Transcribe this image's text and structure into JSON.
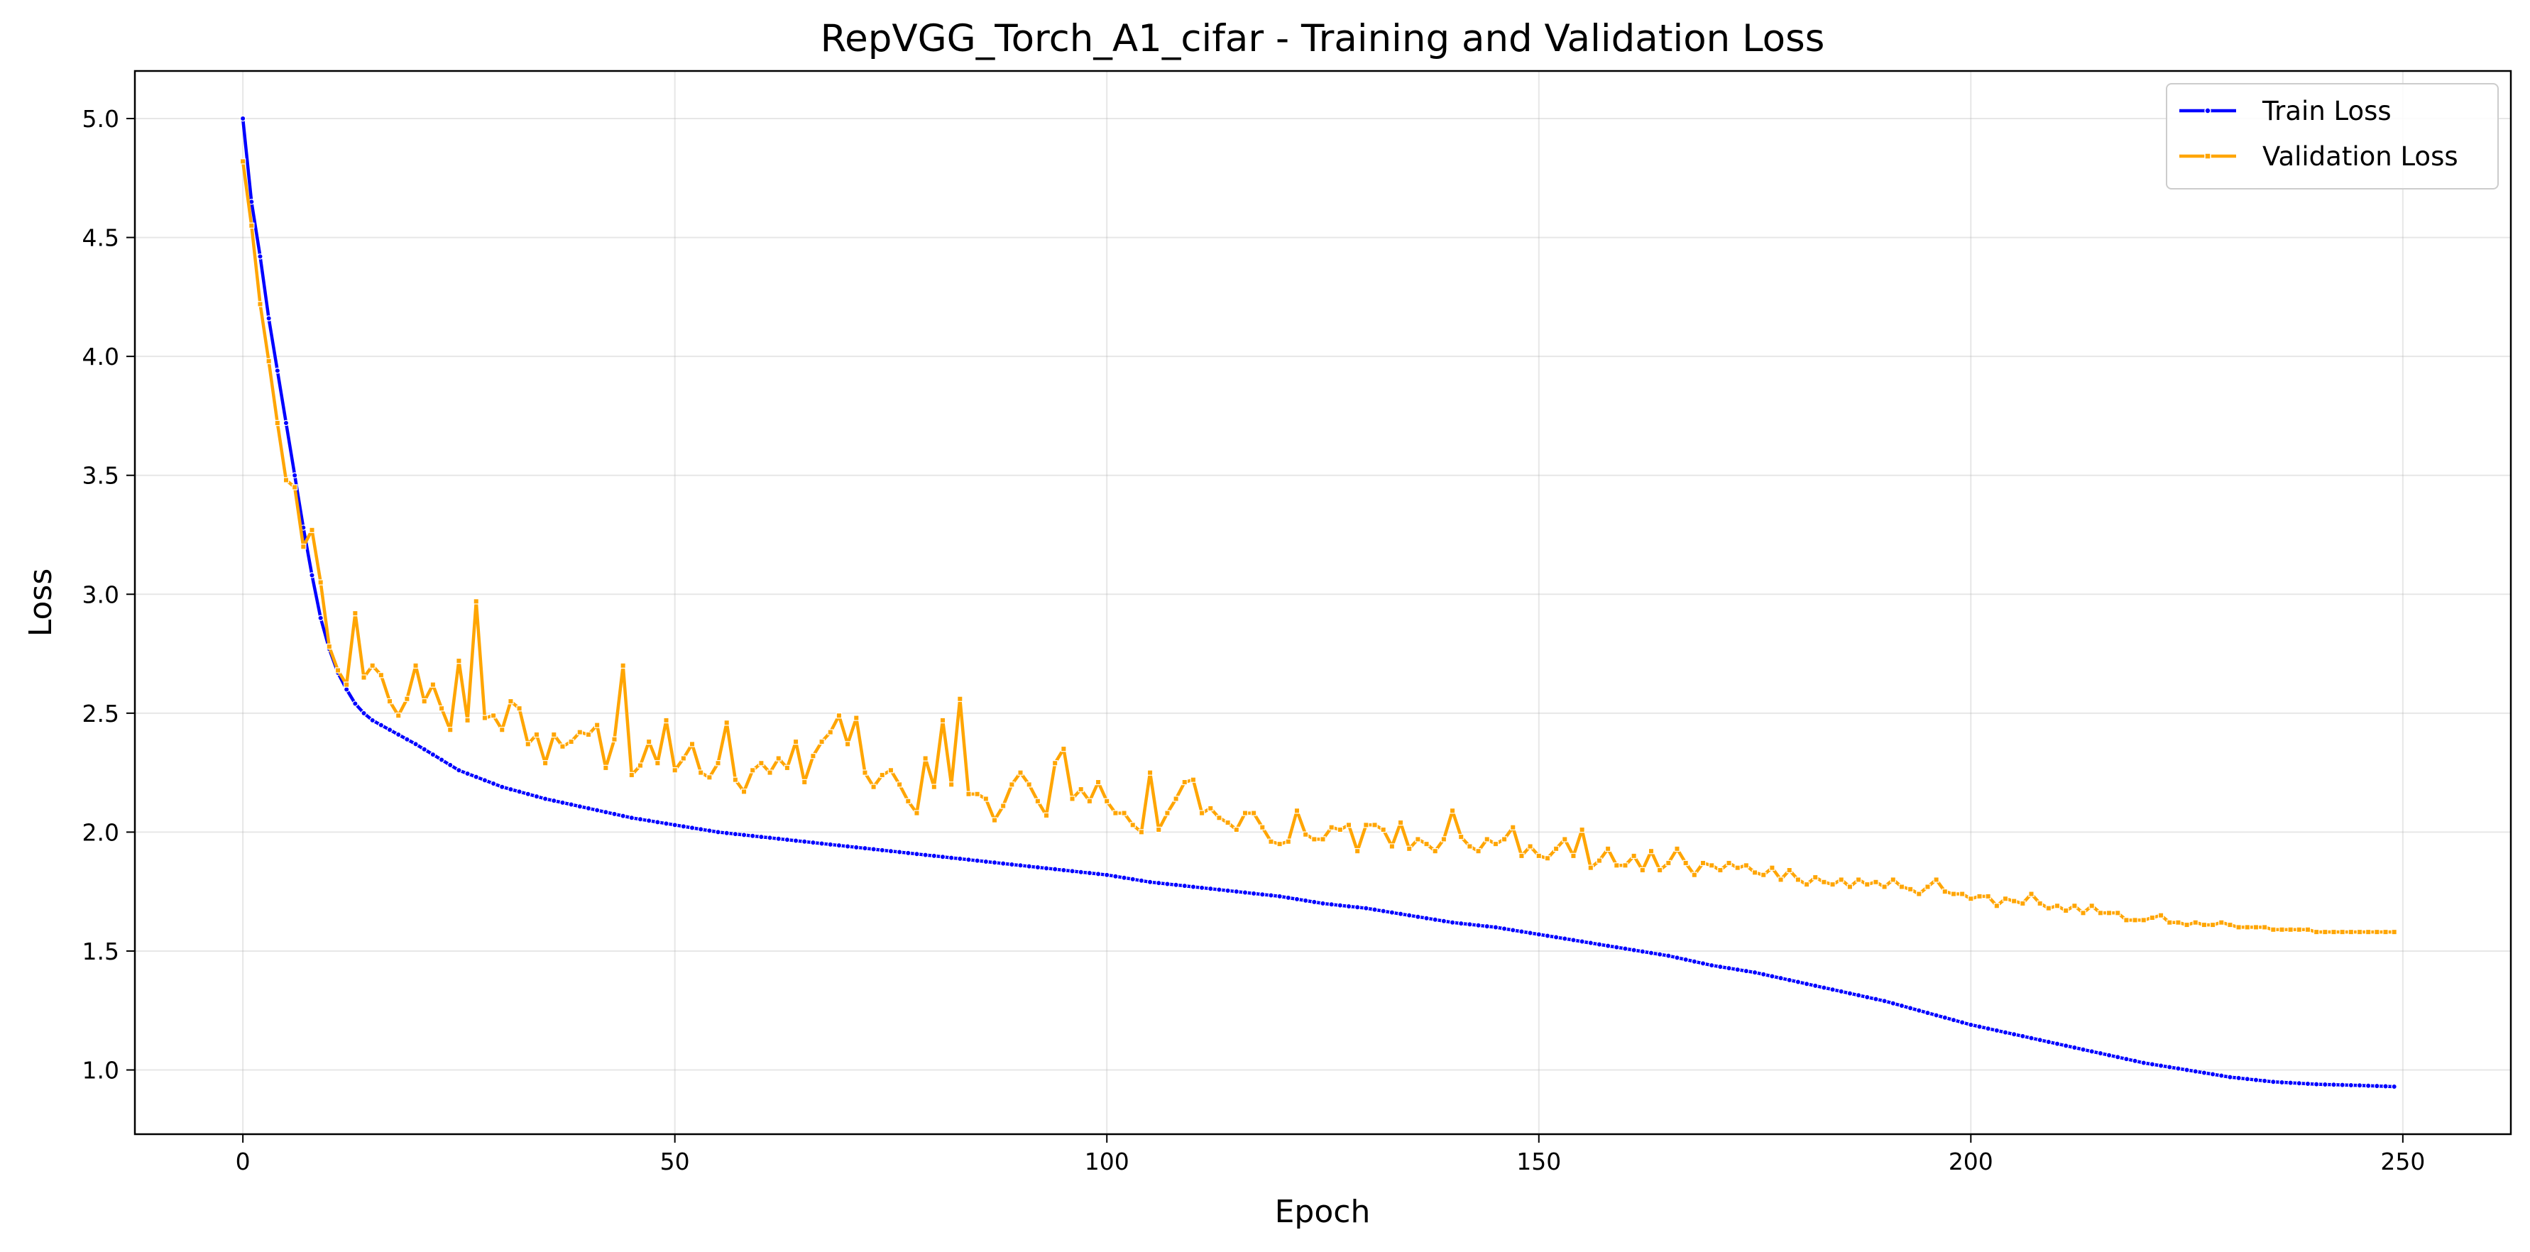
{
  "chart_data": {
    "type": "line",
    "title": "RepVGG_Torch_A1_cifar - Training and Validation Loss",
    "xlabel": "Epoch",
    "ylabel": "Loss",
    "xlim": [
      -12.5,
      262.5
    ],
    "ylim": [
      0.73,
      5.2
    ],
    "xticks": [
      0,
      50,
      100,
      150,
      200,
      250
    ],
    "yticks": [
      1.0,
      1.5,
      2.0,
      2.5,
      3.0,
      3.5,
      4.0,
      4.5,
      5.0
    ],
    "grid": true,
    "legend_position": "top-right",
    "series": [
      {
        "name": "Train Loss",
        "color": "#0000ff",
        "marker": "circle",
        "keypoints": [
          [
            0,
            5.0
          ],
          [
            1,
            4.65
          ],
          [
            2,
            4.42
          ],
          [
            3,
            4.16
          ],
          [
            4,
            3.94
          ],
          [
            5,
            3.72
          ],
          [
            6,
            3.5
          ],
          [
            7,
            3.28
          ],
          [
            8,
            3.08
          ],
          [
            9,
            2.9
          ],
          [
            10,
            2.77
          ],
          [
            11,
            2.67
          ],
          [
            12,
            2.6
          ],
          [
            13,
            2.54
          ],
          [
            14,
            2.5
          ],
          [
            15,
            2.47
          ],
          [
            20,
            2.37
          ],
          [
            25,
            2.26
          ],
          [
            30,
            2.19
          ],
          [
            35,
            2.14
          ],
          [
            40,
            2.1
          ],
          [
            45,
            2.06
          ],
          [
            50,
            2.03
          ],
          [
            55,
            2.0
          ],
          [
            60,
            1.98
          ],
          [
            65,
            1.96
          ],
          [
            70,
            1.94
          ],
          [
            75,
            1.92
          ],
          [
            80,
            1.9
          ],
          [
            85,
            1.88
          ],
          [
            90,
            1.86
          ],
          [
            95,
            1.84
          ],
          [
            100,
            1.82
          ],
          [
            105,
            1.79
          ],
          [
            110,
            1.77
          ],
          [
            115,
            1.75
          ],
          [
            120,
            1.73
          ],
          [
            125,
            1.7
          ],
          [
            130,
            1.68
          ],
          [
            135,
            1.65
          ],
          [
            140,
            1.62
          ],
          [
            145,
            1.6
          ],
          [
            150,
            1.57
          ],
          [
            155,
            1.54
          ],
          [
            160,
            1.51
          ],
          [
            165,
            1.48
          ],
          [
            170,
            1.44
          ],
          [
            175,
            1.41
          ],
          [
            180,
            1.37
          ],
          [
            185,
            1.33
          ],
          [
            190,
            1.29
          ],
          [
            195,
            1.24
          ],
          [
            200,
            1.19
          ],
          [
            205,
            1.15
          ],
          [
            210,
            1.11
          ],
          [
            215,
            1.07
          ],
          [
            220,
            1.03
          ],
          [
            225,
            1.0
          ],
          [
            230,
            0.97
          ],
          [
            235,
            0.95
          ],
          [
            240,
            0.94
          ],
          [
            245,
            0.935
          ],
          [
            249,
            0.93
          ]
        ]
      },
      {
        "name": "Validation Loss",
        "color": "#ffa500",
        "marker": "square",
        "keypoints": [
          [
            0,
            4.82
          ],
          [
            1,
            4.55
          ],
          [
            2,
            4.22
          ],
          [
            3,
            3.98
          ],
          [
            4,
            3.72
          ],
          [
            5,
            3.48
          ],
          [
            6,
            3.45
          ],
          [
            7,
            3.2
          ],
          [
            8,
            3.27
          ],
          [
            9,
            3.05
          ],
          [
            10,
            2.78
          ],
          [
            11,
            2.68
          ],
          [
            12,
            2.62
          ],
          [
            13,
            2.92
          ],
          [
            14,
            2.65
          ],
          [
            15,
            2.7
          ],
          [
            16,
            2.66
          ],
          [
            17,
            2.55
          ],
          [
            18,
            2.49
          ],
          [
            19,
            2.56
          ],
          [
            20,
            2.7
          ],
          [
            21,
            2.55
          ],
          [
            22,
            2.62
          ],
          [
            23,
            2.52
          ],
          [
            24,
            2.43
          ],
          [
            25,
            2.72
          ],
          [
            26,
            2.47
          ],
          [
            27,
            2.97
          ],
          [
            28,
            2.48
          ],
          [
            29,
            2.49
          ],
          [
            30,
            2.43
          ],
          [
            31,
            2.55
          ],
          [
            32,
            2.52
          ],
          [
            33,
            2.37
          ],
          [
            34,
            2.41
          ],
          [
            35,
            2.29
          ],
          [
            36,
            2.41
          ],
          [
            37,
            2.36
          ],
          [
            38,
            2.38
          ],
          [
            39,
            2.42
          ],
          [
            40,
            2.41
          ],
          [
            41,
            2.45
          ],
          [
            42,
            2.27
          ],
          [
            43,
            2.39
          ],
          [
            44,
            2.7
          ],
          [
            45,
            2.24
          ],
          [
            46,
            2.28
          ],
          [
            47,
            2.38
          ],
          [
            48,
            2.29
          ],
          [
            49,
            2.47
          ],
          [
            50,
            2.26
          ],
          [
            51,
            2.31
          ],
          [
            52,
            2.37
          ],
          [
            53,
            2.25
          ],
          [
            54,
            2.23
          ],
          [
            55,
            2.29
          ],
          [
            56,
            2.46
          ],
          [
            57,
            2.22
          ],
          [
            58,
            2.17
          ],
          [
            59,
            2.26
          ],
          [
            60,
            2.29
          ],
          [
            61,
            2.25
          ],
          [
            62,
            2.31
          ],
          [
            63,
            2.27
          ],
          [
            64,
            2.38
          ],
          [
            65,
            2.21
          ],
          [
            66,
            2.32
          ],
          [
            67,
            2.38
          ],
          [
            68,
            2.42
          ],
          [
            69,
            2.49
          ],
          [
            70,
            2.37
          ],
          [
            71,
            2.48
          ],
          [
            72,
            2.25
          ],
          [
            73,
            2.19
          ],
          [
            74,
            2.24
          ],
          [
            75,
            2.26
          ],
          [
            76,
            2.2
          ],
          [
            77,
            2.13
          ],
          [
            78,
            2.08
          ],
          [
            79,
            2.31
          ],
          [
            80,
            2.19
          ],
          [
            81,
            2.47
          ],
          [
            82,
            2.2
          ],
          [
            83,
            2.56
          ],
          [
            84,
            2.16
          ],
          [
            85,
            2.16
          ],
          [
            86,
            2.14
          ],
          [
            87,
            2.05
          ],
          [
            88,
            2.11
          ],
          [
            89,
            2.2
          ],
          [
            90,
            2.25
          ],
          [
            91,
            2.2
          ],
          [
            92,
            2.13
          ],
          [
            93,
            2.07
          ],
          [
            94,
            2.29
          ],
          [
            95,
            2.35
          ],
          [
            96,
            2.14
          ],
          [
            97,
            2.18
          ],
          [
            98,
            2.13
          ],
          [
            99,
            2.21
          ],
          [
            100,
            2.13
          ],
          [
            101,
            2.08
          ],
          [
            102,
            2.08
          ],
          [
            103,
            2.03
          ],
          [
            104,
            2.0
          ],
          [
            105,
            2.25
          ],
          [
            106,
            2.01
          ],
          [
            107,
            2.08
          ],
          [
            108,
            2.14
          ],
          [
            109,
            2.21
          ],
          [
            110,
            2.22
          ],
          [
            111,
            2.08
          ],
          [
            112,
            2.1
          ],
          [
            113,
            2.06
          ],
          [
            114,
            2.04
          ],
          [
            115,
            2.01
          ],
          [
            116,
            2.08
          ],
          [
            117,
            2.08
          ],
          [
            118,
            2.02
          ],
          [
            119,
            1.96
          ],
          [
            120,
            1.95
          ],
          [
            121,
            1.96
          ],
          [
            122,
            2.09
          ],
          [
            123,
            1.99
          ],
          [
            124,
            1.97
          ],
          [
            125,
            1.97
          ],
          [
            126,
            2.02
          ],
          [
            127,
            2.01
          ],
          [
            128,
            2.03
          ],
          [
            129,
            1.92
          ],
          [
            130,
            2.03
          ],
          [
            131,
            2.03
          ],
          [
            132,
            2.01
          ],
          [
            133,
            1.94
          ],
          [
            134,
            2.04
          ],
          [
            135,
            1.93
          ],
          [
            136,
            1.97
          ],
          [
            137,
            1.95
          ],
          [
            138,
            1.92
          ],
          [
            139,
            1.97
          ],
          [
            140,
            2.09
          ],
          [
            141,
            1.98
          ],
          [
            142,
            1.94
          ],
          [
            143,
            1.92
          ],
          [
            144,
            1.97
          ],
          [
            145,
            1.95
          ],
          [
            146,
            1.97
          ],
          [
            147,
            2.02
          ],
          [
            148,
            1.9
          ],
          [
            149,
            1.94
          ],
          [
            150,
            1.9
          ],
          [
            151,
            1.89
          ],
          [
            152,
            1.93
          ],
          [
            153,
            1.97
          ],
          [
            154,
            1.9
          ],
          [
            155,
            2.01
          ],
          [
            156,
            1.85
          ],
          [
            157,
            1.88
          ],
          [
            158,
            1.93
          ],
          [
            159,
            1.86
          ],
          [
            160,
            1.86
          ],
          [
            161,
            1.9
          ],
          [
            162,
            1.84
          ],
          [
            163,
            1.92
          ],
          [
            164,
            1.84
          ],
          [
            165,
            1.87
          ],
          [
            166,
            1.93
          ],
          [
            167,
            1.87
          ],
          [
            168,
            1.82
          ],
          [
            169,
            1.87
          ],
          [
            170,
            1.86
          ],
          [
            171,
            1.84
          ],
          [
            172,
            1.87
          ],
          [
            173,
            1.85
          ],
          [
            174,
            1.86
          ],
          [
            175,
            1.83
          ],
          [
            176,
            1.82
          ],
          [
            177,
            1.85
          ],
          [
            178,
            1.8
          ],
          [
            179,
            1.84
          ],
          [
            180,
            1.8
          ],
          [
            181,
            1.78
          ],
          [
            182,
            1.81
          ],
          [
            183,
            1.79
          ],
          [
            184,
            1.78
          ],
          [
            185,
            1.8
          ],
          [
            186,
            1.77
          ],
          [
            187,
            1.8
          ],
          [
            188,
            1.78
          ],
          [
            189,
            1.79
          ],
          [
            190,
            1.77
          ],
          [
            191,
            1.8
          ],
          [
            192,
            1.77
          ],
          [
            193,
            1.76
          ],
          [
            194,
            1.74
          ],
          [
            195,
            1.77
          ],
          [
            196,
            1.8
          ],
          [
            197,
            1.75
          ],
          [
            198,
            1.74
          ],
          [
            199,
            1.74
          ],
          [
            200,
            1.72
          ],
          [
            201,
            1.73
          ],
          [
            202,
            1.73
          ],
          [
            203,
            1.69
          ],
          [
            204,
            1.72
          ],
          [
            205,
            1.71
          ],
          [
            206,
            1.7
          ],
          [
            207,
            1.74
          ],
          [
            208,
            1.7
          ],
          [
            209,
            1.68
          ],
          [
            210,
            1.69
          ],
          [
            211,
            1.67
          ],
          [
            212,
            1.69
          ],
          [
            213,
            1.66
          ],
          [
            214,
            1.69
          ],
          [
            215,
            1.66
          ],
          [
            216,
            1.66
          ],
          [
            217,
            1.66
          ],
          [
            218,
            1.63
          ],
          [
            219,
            1.63
          ],
          [
            220,
            1.63
          ],
          [
            221,
            1.64
          ],
          [
            222,
            1.65
          ],
          [
            223,
            1.62
          ],
          [
            224,
            1.62
          ],
          [
            225,
            1.61
          ],
          [
            226,
            1.62
          ],
          [
            227,
            1.61
          ],
          [
            228,
            1.61
          ],
          [
            229,
            1.62
          ],
          [
            230,
            1.61
          ],
          [
            231,
            1.6
          ],
          [
            232,
            1.6
          ],
          [
            233,
            1.6
          ],
          [
            234,
            1.6
          ],
          [
            235,
            1.59
          ],
          [
            236,
            1.59
          ],
          [
            237,
            1.59
          ],
          [
            238,
            1.59
          ],
          [
            239,
            1.59
          ],
          [
            240,
            1.58
          ],
          [
            241,
            1.58
          ],
          [
            242,
            1.58
          ],
          [
            243,
            1.58
          ],
          [
            244,
            1.58
          ],
          [
            245,
            1.58
          ],
          [
            246,
            1.58
          ],
          [
            247,
            1.58
          ],
          [
            248,
            1.58
          ],
          [
            249,
            1.58
          ]
        ]
      }
    ]
  }
}
